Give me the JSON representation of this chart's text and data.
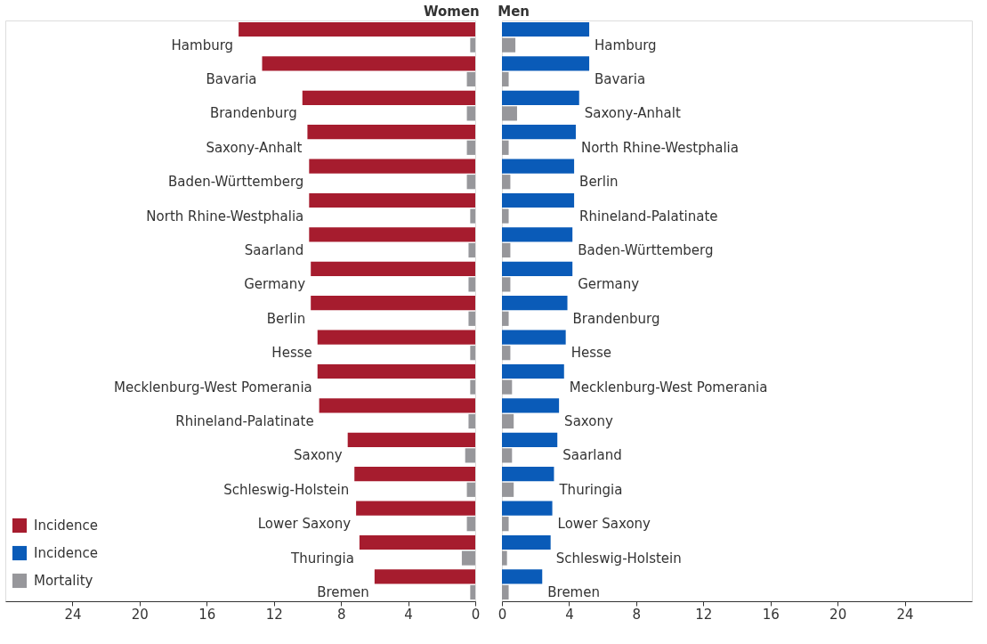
{
  "chart_data": [
    {
      "type": "bar",
      "orientation": "horizontal",
      "title": "Women",
      "legend": "bottom left",
      "grid": false,
      "categories": [
        "Hamburg",
        "Bavaria",
        "Brandenburg",
        "Saxony-Anhalt",
        "Baden-Württemberg",
        "North Rhine-Westphalia",
        "Saarland",
        "Germany",
        "Berlin",
        "Hesse",
        "Mecklenburg-West Pomerania",
        "Rhineland-Palatinate",
        "Saxony",
        "Schleswig-Holstein",
        "Lower Saxony",
        "Thuringia",
        "Bremen"
      ],
      "xlim": [
        28,
        0
      ],
      "xticks": [
        24,
        20,
        16,
        12,
        8,
        4,
        0
      ],
      "series": [
        {
          "name": "Incidence",
          "color": "#a61c2e",
          "values": [
            14.1,
            12.7,
            10.3,
            10.0,
            9.9,
            9.9,
            9.9,
            9.8,
            9.8,
            9.4,
            9.4,
            9.3,
            7.6,
            7.2,
            7.1,
            6.9,
            6.0
          ]
        },
        {
          "name": "Mortality",
          "color": "#97979b",
          "values": [
            0.3,
            0.5,
            0.5,
            0.5,
            0.5,
            0.3,
            0.4,
            0.4,
            0.4,
            0.3,
            0.3,
            0.4,
            0.6,
            0.5,
            0.5,
            0.8,
            0.3
          ]
        }
      ]
    },
    {
      "type": "bar",
      "orientation": "horizontal",
      "title": "Men",
      "grid": false,
      "categories": [
        "Hamburg",
        "Bavaria",
        "Saxony-Anhalt",
        "North Rhine-Westphalia",
        "Berlin",
        "Rhineland-Palatinate",
        "Baden-Württemberg",
        "Germany",
        "Brandenburg",
        "Hesse",
        "Mecklenburg-West Pomerania",
        "Saxony",
        "Saarland",
        "Thuringia",
        "Lower Saxony",
        "Schleswig-Holstein",
        "Bremen"
      ],
      "xlim": [
        0,
        28
      ],
      "xticks": [
        0,
        4,
        8,
        12,
        16,
        20,
        24
      ],
      "series": [
        {
          "name": "Incidence",
          "color": "#0a5bb8",
          "values": [
            5.2,
            5.2,
            4.6,
            4.4,
            4.3,
            4.3,
            4.2,
            4.2,
            3.9,
            3.8,
            3.7,
            3.4,
            3.3,
            3.1,
            3.0,
            2.9,
            2.4
          ]
        },
        {
          "name": "Mortality",
          "color": "#97979b",
          "values": [
            0.8,
            0.4,
            0.9,
            0.4,
            0.5,
            0.4,
            0.5,
            0.5,
            0.4,
            0.5,
            0.6,
            0.7,
            0.6,
            0.7,
            0.4,
            0.3,
            0.4
          ]
        }
      ]
    }
  ]
}
